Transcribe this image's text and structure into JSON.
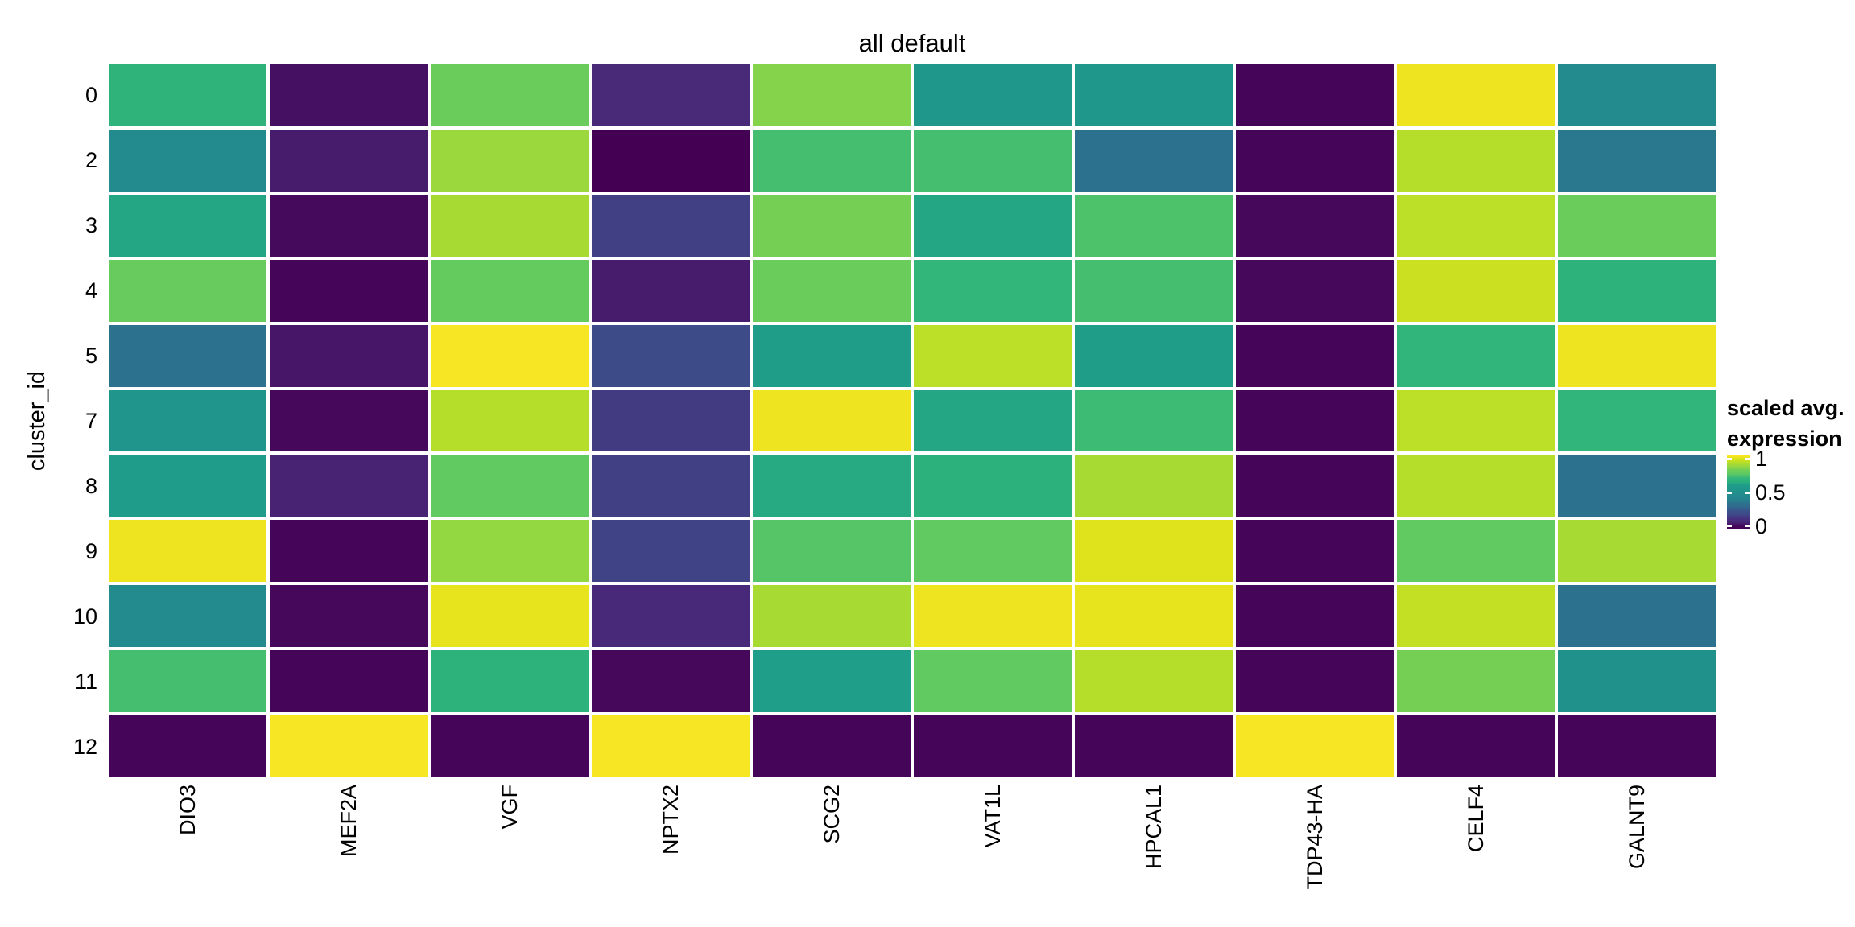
{
  "title": "all default",
  "y_axis": {
    "title": "cluster_id",
    "tick_labels": [
      "0",
      "2",
      "3",
      "4",
      "5",
      "7",
      "8",
      "9",
      "10",
      "11",
      "12"
    ]
  },
  "x_axis": {
    "tick_labels": [
      "DIO3",
      "MEF2A",
      "VGF",
      "NPTX2",
      "SCG2",
      "VAT1L",
      "HPCAL1",
      "TDP43-HA",
      "CELF4",
      "GALNT9"
    ]
  },
  "legend": {
    "title_lines": [
      "scaled avg.",
      "expression"
    ],
    "tick_labels": [
      "1",
      "0.5",
      "0"
    ]
  },
  "colors": {
    "background": "#ffffff",
    "text": "#000000",
    "colormap_min": "#440154",
    "colormap_mid": "#21918c",
    "colormap_max": "#fde725",
    "viridis_stops": [
      "#440154",
      "#460a5d",
      "#482878",
      "#46327e",
      "#3e4989",
      "#3b528b",
      "#31688e",
      "#2c718e",
      "#26828e",
      "#23898e",
      "#21918c",
      "#1f988b",
      "#1f9e89",
      "#2cb17d",
      "#35b779",
      "#5ec962",
      "#6dcd59",
      "#93d741",
      "#b5de2b",
      "#d8e219",
      "#fde725"
    ]
  },
  "chart_data": {
    "type": "heatmap",
    "title": "all default",
    "xlabel": "",
    "ylabel": "cluster_id",
    "legend_title": "scaled avg. expression",
    "colormap": "viridis",
    "value_range": [
      0,
      1
    ],
    "legend_ticks": [
      1,
      0.5,
      0
    ],
    "rows": [
      "0",
      "2",
      "3",
      "4",
      "5",
      "7",
      "8",
      "9",
      "10",
      "11",
      "12"
    ],
    "columns": [
      "DIO3",
      "MEF2A",
      "VGF",
      "NPTX2",
      "SCG2",
      "VAT1L",
      "HPCAL1",
      "TDP43-HA",
      "CELF4",
      "GALNT9"
    ],
    "values": [
      [
        0.67,
        0.06,
        0.79,
        0.11,
        0.83,
        0.55,
        0.55,
        0.02,
        0.98,
        0.46
      ],
      [
        0.46,
        0.08,
        0.86,
        0.0,
        0.72,
        0.72,
        0.35,
        0.03,
        0.9,
        0.37
      ],
      [
        0.62,
        0.05,
        0.88,
        0.18,
        0.81,
        0.62,
        0.73,
        0.04,
        0.91,
        0.79
      ],
      [
        0.78,
        0.03,
        0.77,
        0.08,
        0.79,
        0.69,
        0.72,
        0.04,
        0.93,
        0.66
      ],
      [
        0.35,
        0.07,
        0.99,
        0.21,
        0.59,
        0.91,
        0.59,
        0.03,
        0.68,
        0.98
      ],
      [
        0.53,
        0.04,
        0.9,
        0.17,
        0.98,
        0.62,
        0.71,
        0.02,
        0.91,
        0.68
      ],
      [
        0.58,
        0.09,
        0.76,
        0.18,
        0.63,
        0.65,
        0.88,
        0.03,
        0.9,
        0.35
      ],
      [
        0.98,
        0.03,
        0.85,
        0.19,
        0.74,
        0.76,
        0.96,
        0.03,
        0.76,
        0.88
      ],
      [
        0.46,
        0.04,
        0.97,
        0.1,
        0.88,
        0.98,
        0.97,
        0.02,
        0.92,
        0.35
      ],
      [
        0.72,
        0.02,
        0.66,
        0.04,
        0.6,
        0.76,
        0.9,
        0.03,
        0.81,
        0.5
      ],
      [
        0.02,
        0.99,
        0.03,
        0.99,
        0.02,
        0.02,
        0.03,
        0.99,
        0.03,
        0.02
      ]
    ]
  }
}
